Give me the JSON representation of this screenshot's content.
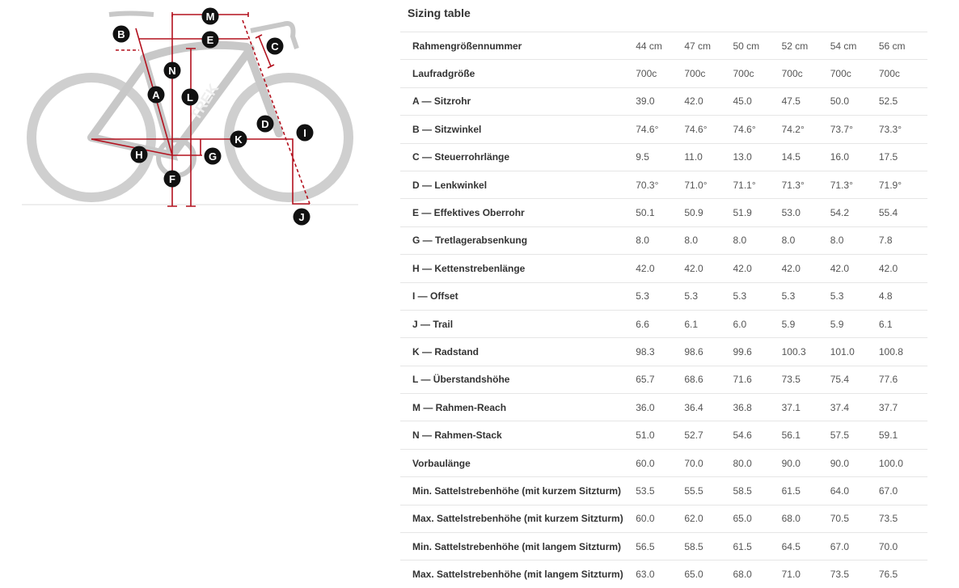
{
  "diagram": {
    "labels": [
      "A",
      "B",
      "C",
      "D",
      "E",
      "F",
      "G",
      "H",
      "I",
      "J",
      "K",
      "L",
      "M",
      "N"
    ],
    "brand": "TREK",
    "accent_color": "#b3121f",
    "marker_color": "#111111",
    "frame_color": "#c8c8c8"
  },
  "title": "Sizing table",
  "table": {
    "rows": [
      {
        "label": "Rahmengrößennummer",
        "values": [
          "44 cm",
          "47 cm",
          "50 cm",
          "52 cm",
          "54 cm",
          "56 cm"
        ]
      },
      {
        "label": "Laufradgröße",
        "values": [
          "700c",
          "700c",
          "700c",
          "700c",
          "700c",
          "700c"
        ]
      },
      {
        "label": "A — Sitzrohr",
        "values": [
          "39.0",
          "42.0",
          "45.0",
          "47.5",
          "50.0",
          "52.5"
        ]
      },
      {
        "label": "B — Sitzwinkel",
        "values": [
          "74.6°",
          "74.6°",
          "74.6°",
          "74.2°",
          "73.7°",
          "73.3°"
        ]
      },
      {
        "label": "C — Steuerrohrlänge",
        "values": [
          "9.5",
          "11.0",
          "13.0",
          "14.5",
          "16.0",
          "17.5"
        ]
      },
      {
        "label": "D — Lenkwinkel",
        "values": [
          "70.3°",
          "71.0°",
          "71.1°",
          "71.3°",
          "71.3°",
          "71.9°"
        ]
      },
      {
        "label": "E — Effektives Oberrohr",
        "values": [
          "50.1",
          "50.9",
          "51.9",
          "53.0",
          "54.2",
          "55.4"
        ]
      },
      {
        "label": "G — Tretlagerabsenkung",
        "values": [
          "8.0",
          "8.0",
          "8.0",
          "8.0",
          "8.0",
          "7.8"
        ]
      },
      {
        "label": "H — Kettenstrebenlänge",
        "values": [
          "42.0",
          "42.0",
          "42.0",
          "42.0",
          "42.0",
          "42.0"
        ]
      },
      {
        "label": "I — Offset",
        "values": [
          "5.3",
          "5.3",
          "5.3",
          "5.3",
          "5.3",
          "4.8"
        ]
      },
      {
        "label": "J — Trail",
        "values": [
          "6.6",
          "6.1",
          "6.0",
          "5.9",
          "5.9",
          "6.1"
        ]
      },
      {
        "label": "K — Radstand",
        "values": [
          "98.3",
          "98.6",
          "99.6",
          "100.3",
          "101.0",
          "100.8"
        ]
      },
      {
        "label": "L — Überstandshöhe",
        "values": [
          "65.7",
          "68.6",
          "71.6",
          "73.5",
          "75.4",
          "77.6"
        ]
      },
      {
        "label": "M — Rahmen-Reach",
        "values": [
          "36.0",
          "36.4",
          "36.8",
          "37.1",
          "37.4",
          "37.7"
        ]
      },
      {
        "label": "N — Rahmen-Stack",
        "values": [
          "51.0",
          "52.7",
          "54.6",
          "56.1",
          "57.5",
          "59.1"
        ]
      },
      {
        "label": "Vorbaulänge",
        "values": [
          "60.0",
          "70.0",
          "80.0",
          "90.0",
          "90.0",
          "100.0"
        ]
      },
      {
        "label": "Min. Sattelstrebenhöhe (mit kurzem Sitzturm)",
        "values": [
          "53.5",
          "55.5",
          "58.5",
          "61.5",
          "64.0",
          "67.0"
        ]
      },
      {
        "label": "Max. Sattelstrebenhöhe (mit kurzem Sitzturm)",
        "values": [
          "60.0",
          "62.0",
          "65.0",
          "68.0",
          "70.5",
          "73.5"
        ]
      },
      {
        "label": "Min. Sattelstrebenhöhe (mit langem Sitzturm)",
        "values": [
          "56.5",
          "58.5",
          "61.5",
          "64.5",
          "67.0",
          "70.0"
        ]
      },
      {
        "label": "Max. Sattelstrebenhöhe (mit langem Sitzturm)",
        "values": [
          "63.0",
          "65.0",
          "68.0",
          "71.0",
          "73.5",
          "76.5"
        ]
      }
    ]
  }
}
